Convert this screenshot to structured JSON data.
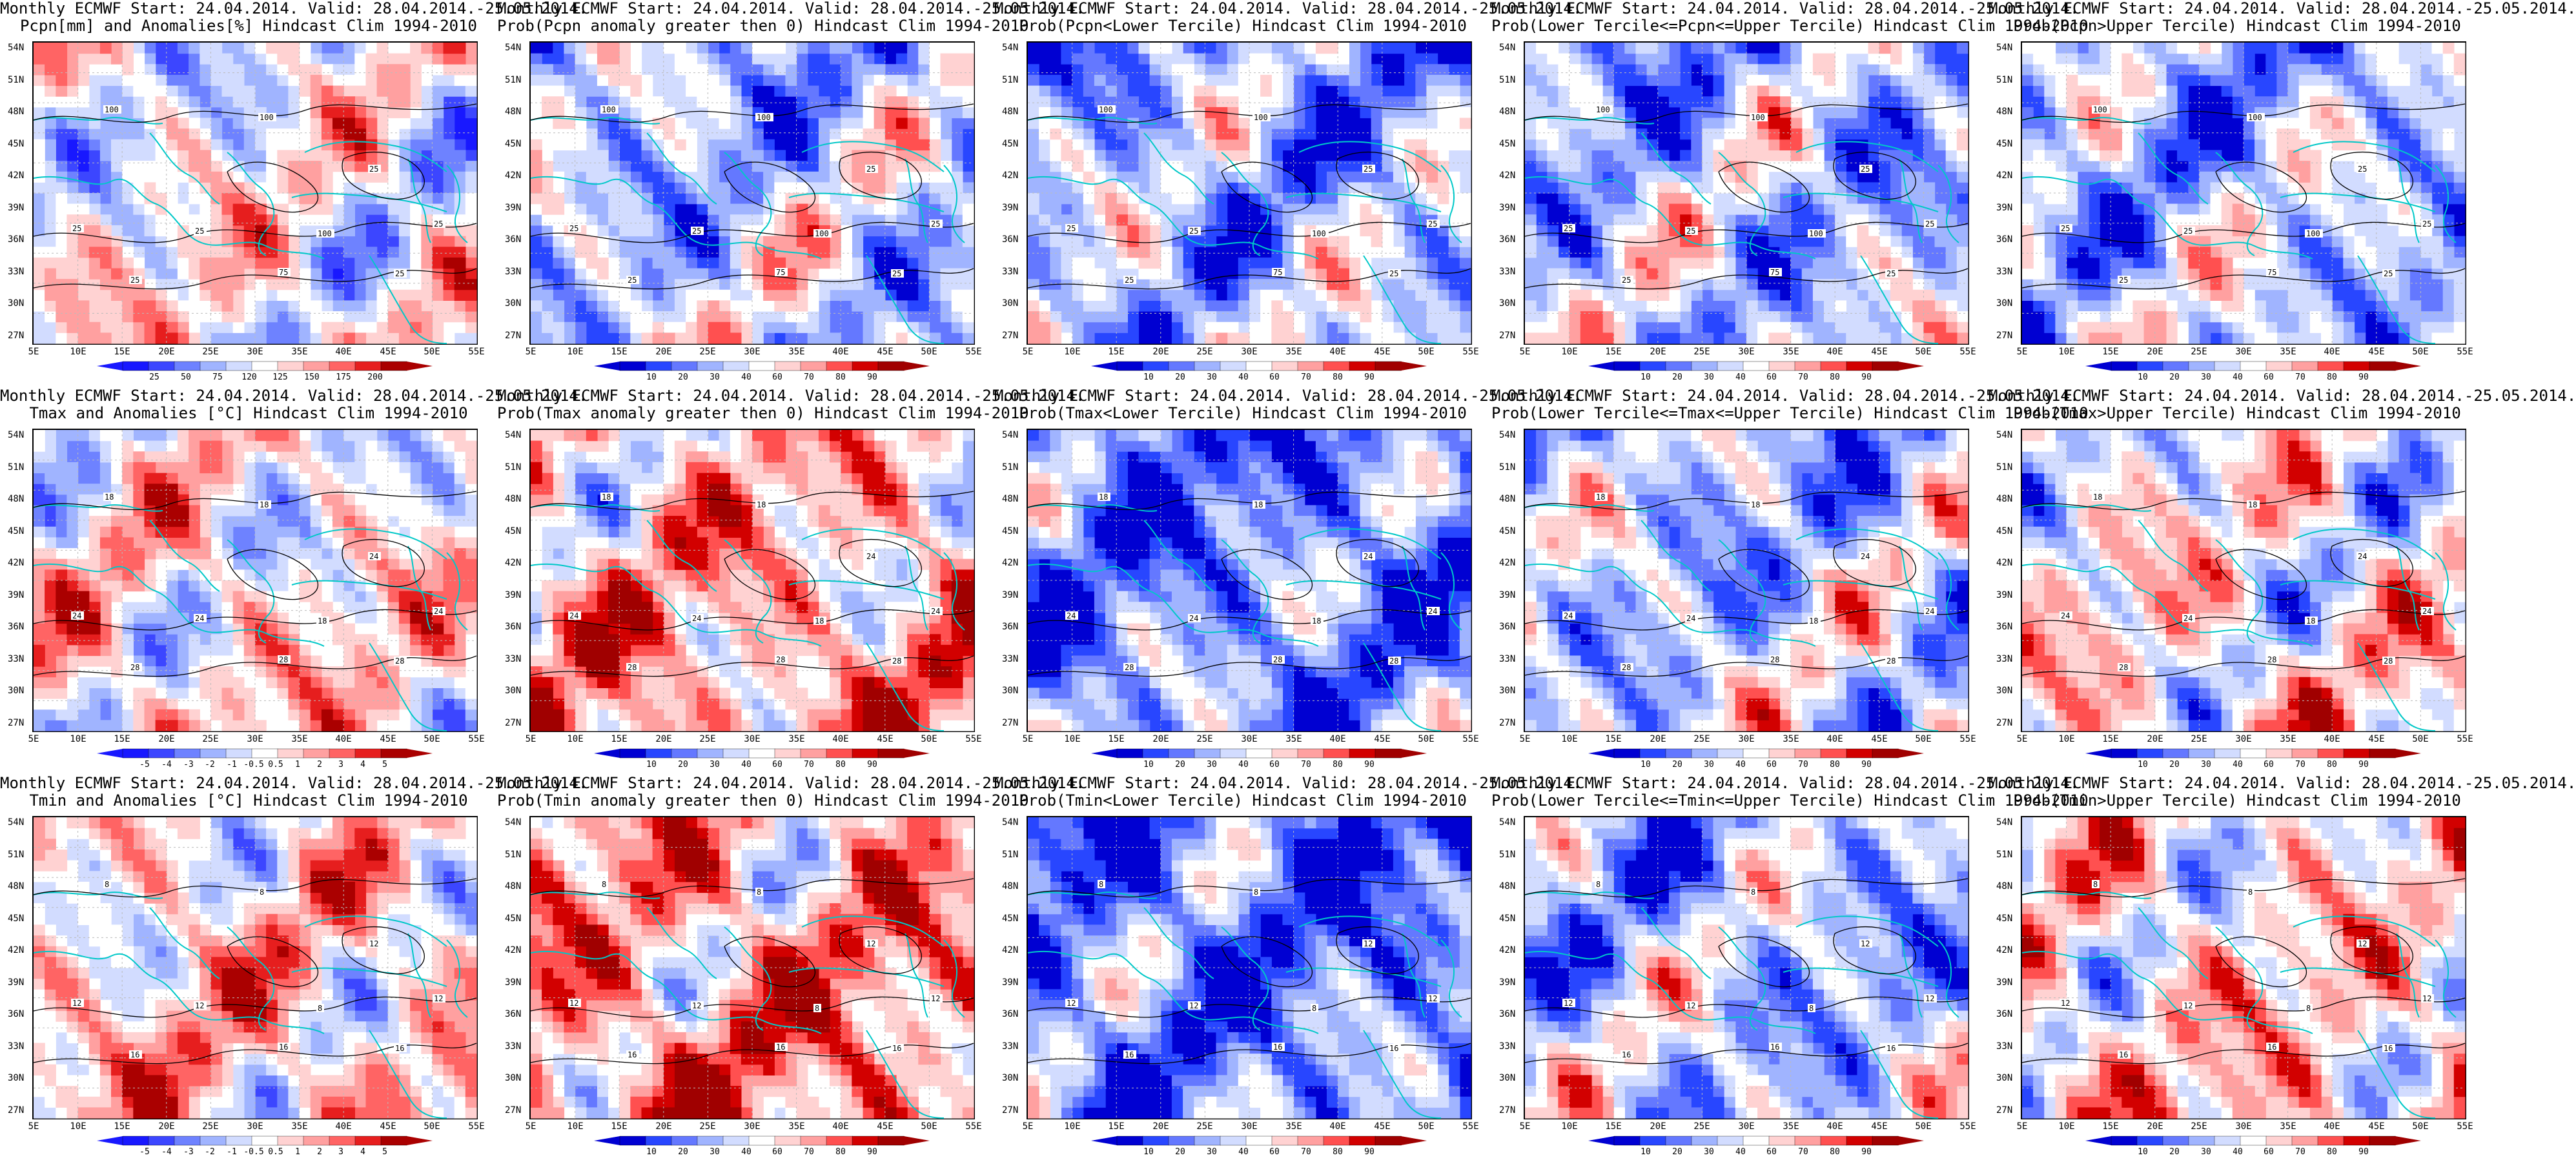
{
  "lat_labels": [
    "54N",
    "51N",
    "48N",
    "45N",
    "42N",
    "39N",
    "36N",
    "33N",
    "30N",
    "27N"
  ],
  "lon_labels": [
    "5E",
    "10E",
    "15E",
    "20E",
    "25E",
    "30E",
    "35E",
    "40E",
    "45E",
    "50E",
    "55E"
  ],
  "colors": {
    "coast": "#00c8c8",
    "contour": "#000000",
    "anom": [
      "#1818ff",
      "#3c46ff",
      "#6e82ff",
      "#a0b4ff",
      "#d2dcff",
      "#ffffff",
      "#ffd2d2",
      "#ffa0a0",
      "#ff6464",
      "#e61e1e",
      "#aa0000"
    ],
    "prob": [
      "#0000d2",
      "#2846ff",
      "#6478ff",
      "#a0b4ff",
      "#d2dcff",
      "#ffffff",
      "#ffd2d2",
      "#ffa0a0",
      "#ff5050",
      "#d20000",
      "#a00000"
    ]
  },
  "panels": [
    {
      "title1": "Monthly ECMWF Start: 24.04.2014. Valid: 28.04.2014.-25.05.2014.",
      "title2": "Pcpn[mm] and Anomalies[%] Hindcast Clim 1994-2010",
      "scale": "anom",
      "cbar": [
        "25",
        "50",
        "75",
        "120",
        "125",
        "150",
        "175",
        "200"
      ],
      "bias": 0.0,
      "contour_labels": [
        "100",
        "100",
        "25",
        "25",
        "100",
        "25",
        "25",
        "75",
        "25",
        "25"
      ]
    },
    {
      "title1": "Monthly ECMWF Start: 24.04.2014. Valid: 28.04.2014.-25.05.2014.",
      "title2": "Prob(Pcpn anomaly greater then 0) Hindcast Clim 1994-2010",
      "scale": "prob",
      "cbar": [
        "10",
        "20",
        "30",
        "40",
        "60",
        "70",
        "80",
        "90"
      ],
      "bias": -0.25,
      "contour_labels": [
        "100",
        "100",
        "25",
        "25",
        "100",
        "25",
        "25",
        "75",
        "25",
        "25"
      ]
    },
    {
      "title1": "Monthly ECMWF Start: 24.04.2014. Valid: 28.04.2014.-25.05.2014.",
      "title2": "Prob(Pcpn<Lower Tercile) Hindcast Clim 1994-2010",
      "scale": "prob",
      "cbar": [
        "10",
        "20",
        "30",
        "40",
        "60",
        "70",
        "80",
        "90"
      ],
      "bias": -0.35,
      "contour_labels": [
        "100",
        "100",
        "25",
        "25",
        "100",
        "25",
        "25",
        "75",
        "25",
        "25"
      ]
    },
    {
      "title1": "Monthly ECMWF Start: 24.04.2014. Valid: 28.04.2014.-25.05.2014.",
      "title2": "Prob(Lower Tercile<=Pcpn<=Upper Tercile) Hindcast Clim 1994-2010",
      "scale": "prob",
      "cbar": [
        "10",
        "20",
        "30",
        "40",
        "60",
        "70",
        "80",
        "90"
      ],
      "bias": -0.3,
      "contour_labels": [
        "100",
        "100",
        "25",
        "25",
        "100",
        "25",
        "25",
        "75",
        "25",
        "25"
      ]
    },
    {
      "title1": "Monthly ECMWF Start: 24.04.2014. Valid: 28.04.2014.-25.05.2014.",
      "title2": "Prob(Pcpn>Upper Tercile) Hindcast Clim 1994-2010",
      "scale": "prob",
      "cbar": [
        "10",
        "20",
        "30",
        "40",
        "60",
        "70",
        "80",
        "90"
      ],
      "bias": -0.3,
      "contour_labels": [
        "100",
        "100",
        "25",
        "25",
        "100",
        "25",
        "25",
        "75",
        "25",
        "25"
      ]
    },
    {
      "title1": "Monthly ECMWF Start: 24.04.2014. Valid: 28.04.2014.-25.05.2014.",
      "title2": "Tmax and Anomalies [°C] Hindcast Clim 1994-2010",
      "scale": "anom",
      "cbar": [
        "-5",
        "-4",
        "-3",
        "-2",
        "-1",
        "-0.5",
        "0.5",
        "1",
        "2",
        "3",
        "4",
        "5"
      ],
      "bias": 0.1,
      "contour_labels": [
        "18",
        "18",
        "24",
        "24",
        "18",
        "24",
        "28",
        "28",
        "28",
        "24"
      ]
    },
    {
      "title1": "Monthly ECMWF Start: 24.04.2014. Valid: 28.04.2014.-25.05.2014.",
      "title2": "Prob(Tmax anomaly greater then 0) Hindcast Clim 1994-2010",
      "scale": "prob",
      "cbar": [
        "10",
        "20",
        "30",
        "40",
        "60",
        "70",
        "80",
        "90"
      ],
      "bias": 0.3,
      "contour_labels": [
        "18",
        "18",
        "24",
        "24",
        "18",
        "24",
        "28",
        "28",
        "28",
        "24"
      ]
    },
    {
      "title1": "Monthly ECMWF Start: 24.04.2014. Valid: 28.04.2014.-25.05.2014.",
      "title2": "Prob(Tmax<Lower Tercile) Hindcast Clim 1994-2010",
      "scale": "prob",
      "cbar": [
        "10",
        "20",
        "30",
        "40",
        "60",
        "70",
        "80",
        "90"
      ],
      "bias": -0.55,
      "contour_labels": [
        "18",
        "18",
        "24",
        "24",
        "18",
        "24",
        "28",
        "28",
        "28",
        "24"
      ]
    },
    {
      "title1": "Monthly ECMWF Start: 24.04.2014. Valid: 28.04.2014.-25.05.2014.",
      "title2": "Prob(Lower Tercile<=Tmax<=Upper Tercile) Hindcast Clim 1994-2010",
      "scale": "prob",
      "cbar": [
        "10",
        "20",
        "30",
        "40",
        "60",
        "70",
        "80",
        "90"
      ],
      "bias": -0.25,
      "contour_labels": [
        "18",
        "18",
        "24",
        "24",
        "18",
        "24",
        "28",
        "28",
        "28",
        "24"
      ]
    },
    {
      "title1": "Monthly ECMWF Start: 24.04.2014. Valid: 28.04.2014.-25.05.2014.",
      "title2": "Prob(Tmax>Upper Tercile) Hindcast Clim 1994-2010",
      "scale": "prob",
      "cbar": [
        "10",
        "20",
        "30",
        "40",
        "60",
        "70",
        "80",
        "90"
      ],
      "bias": 0.05,
      "contour_labels": [
        "18",
        "18",
        "24",
        "24",
        "18",
        "24",
        "28",
        "28",
        "28",
        "24"
      ]
    },
    {
      "title1": "Monthly ECMWF Start: 24.04.2014. Valid: 28.04.2014.-25.05.2014.",
      "title2": "Tmin and Anomalies [°C] Hindcast Clim 1994-2010",
      "scale": "anom",
      "cbar": [
        "-5",
        "-4",
        "-3",
        "-2",
        "-1",
        "-0.5",
        "0.5",
        "1",
        "2",
        "3",
        "4",
        "5"
      ],
      "bias": 0.2,
      "contour_labels": [
        "8",
        "8",
        "12",
        "12",
        "8",
        "12",
        "16",
        "16",
        "16",
        "12"
      ]
    },
    {
      "title1": "Monthly ECMWF Start: 24.04.2014. Valid: 28.04.2014.-25.05.2014.",
      "title2": "Prob(Tmin anomaly greater then 0) Hindcast Clim 1994-2010",
      "scale": "prob",
      "cbar": [
        "10",
        "20",
        "30",
        "40",
        "60",
        "70",
        "80",
        "90"
      ],
      "bias": 0.4,
      "contour_labels": [
        "8",
        "8",
        "12",
        "12",
        "8",
        "12",
        "16",
        "16",
        "16",
        "12"
      ]
    },
    {
      "title1": "Monthly ECMWF Start: 24.04.2014. Valid: 28.04.2014.-25.05.2014.",
      "title2": "Prob(Tmin<Lower Tercile) Hindcast Clim 1994-2010",
      "scale": "prob",
      "cbar": [
        "10",
        "20",
        "30",
        "40",
        "60",
        "70",
        "80",
        "90"
      ],
      "bias": -0.6,
      "contour_labels": [
        "8",
        "8",
        "12",
        "12",
        "8",
        "12",
        "16",
        "16",
        "16",
        "12"
      ]
    },
    {
      "title1": "Monthly ECMWF Start: 24.04.2014. Valid: 28.04.2014.-25.05.2014.",
      "title2": "Prob(Lower Tercile<=Tmin<=Upper Tercile) Hindcast Clim 1994-2010",
      "scale": "prob",
      "cbar": [
        "10",
        "20",
        "30",
        "40",
        "60",
        "70",
        "80",
        "90"
      ],
      "bias": -0.3,
      "contour_labels": [
        "8",
        "8",
        "12",
        "12",
        "8",
        "12",
        "16",
        "16",
        "16",
        "12"
      ]
    },
    {
      "title1": "Monthly ECMWF Start: 24.04.2014. Valid: 28.04.2014.-25.05.2014.",
      "title2": "Prob(Tmin>Upper Tercile) Hindcast Clim 1994-2010",
      "scale": "prob",
      "cbar": [
        "10",
        "20",
        "30",
        "40",
        "60",
        "70",
        "80",
        "90"
      ],
      "bias": 0.15,
      "contour_labels": [
        "8",
        "8",
        "12",
        "12",
        "8",
        "12",
        "16",
        "16",
        "16",
        "12"
      ]
    }
  ]
}
